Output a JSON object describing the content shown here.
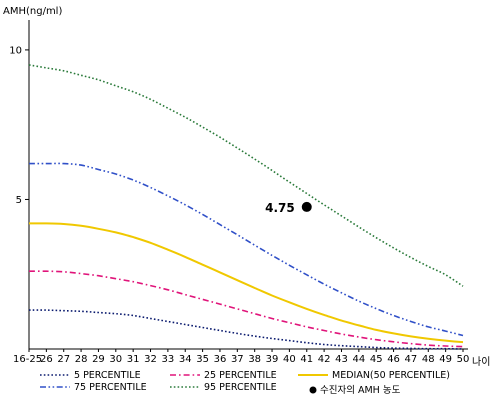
{
  "chart_data": {
    "type": "line",
    "title": "",
    "ylabel": "AMH(ng/ml)",
    "xlabel": "나이",
    "ylim": [
      0,
      11
    ],
    "yticks": [
      5,
      10
    ],
    "categories": [
      "16-25",
      "26",
      "27",
      "28",
      "29",
      "30",
      "31",
      "32",
      "33",
      "34",
      "35",
      "36",
      "37",
      "38",
      "39",
      "40",
      "41",
      "42",
      "43",
      "44",
      "45",
      "46",
      "47",
      "48",
      "49",
      "50"
    ],
    "grid": false,
    "legend_position": "bottom",
    "series": [
      {
        "name": "5 PERCENTILE",
        "color": "#0a1a6e",
        "dash": "dotted",
        "values": [
          1.3,
          1.3,
          1.28,
          1.26,
          1.22,
          1.18,
          1.12,
          1.02,
          0.92,
          0.82,
          0.72,
          0.62,
          0.52,
          0.43,
          0.35,
          0.28,
          0.21,
          0.15,
          0.11,
          0.08,
          0.05,
          0.03,
          0.02,
          0.01,
          0.01,
          0.0
        ]
      },
      {
        "name": "25 PERCENTILE",
        "color": "#e0147a",
        "dash": "dashdot",
        "values": [
          2.6,
          2.6,
          2.58,
          2.52,
          2.45,
          2.35,
          2.25,
          2.12,
          1.98,
          1.82,
          1.66,
          1.5,
          1.34,
          1.18,
          1.02,
          0.88,
          0.74,
          0.62,
          0.5,
          0.4,
          0.31,
          0.24,
          0.18,
          0.13,
          0.1,
          0.08
        ]
      },
      {
        "name": "MEDIAN(50 PERCENTILE)",
        "color": "#f0c800",
        "dash": "solid",
        "values": [
          4.2,
          4.2,
          4.18,
          4.12,
          4.02,
          3.9,
          3.74,
          3.55,
          3.32,
          3.08,
          2.82,
          2.56,
          2.3,
          2.04,
          1.79,
          1.56,
          1.34,
          1.14,
          0.95,
          0.79,
          0.64,
          0.52,
          0.42,
          0.34,
          0.28,
          0.23
        ]
      },
      {
        "name": "75 PERCENTILE",
        "color": "#3050c8",
        "dash": "dashdotdot",
        "values": [
          6.2,
          6.2,
          6.2,
          6.15,
          6.0,
          5.85,
          5.65,
          5.4,
          5.12,
          4.82,
          4.5,
          4.16,
          3.82,
          3.47,
          3.13,
          2.8,
          2.48,
          2.17,
          1.88,
          1.6,
          1.35,
          1.12,
          0.92,
          0.74,
          0.6,
          0.45
        ]
      },
      {
        "name": "95 PERCENTILE",
        "color": "#2a7a3a",
        "dash": "dotted",
        "values": [
          9.5,
          9.4,
          9.3,
          9.15,
          9.0,
          8.8,
          8.6,
          8.35,
          8.05,
          7.75,
          7.42,
          7.08,
          6.72,
          6.35,
          5.97,
          5.58,
          5.2,
          4.82,
          4.45,
          4.08,
          3.72,
          3.38,
          3.06,
          2.76,
          2.48,
          2.1
        ]
      }
    ],
    "marker": {
      "name": "수진자의 AMH 농도",
      "x": "41",
      "y": 4.75,
      "label": "4.75",
      "color": "#000000"
    }
  }
}
